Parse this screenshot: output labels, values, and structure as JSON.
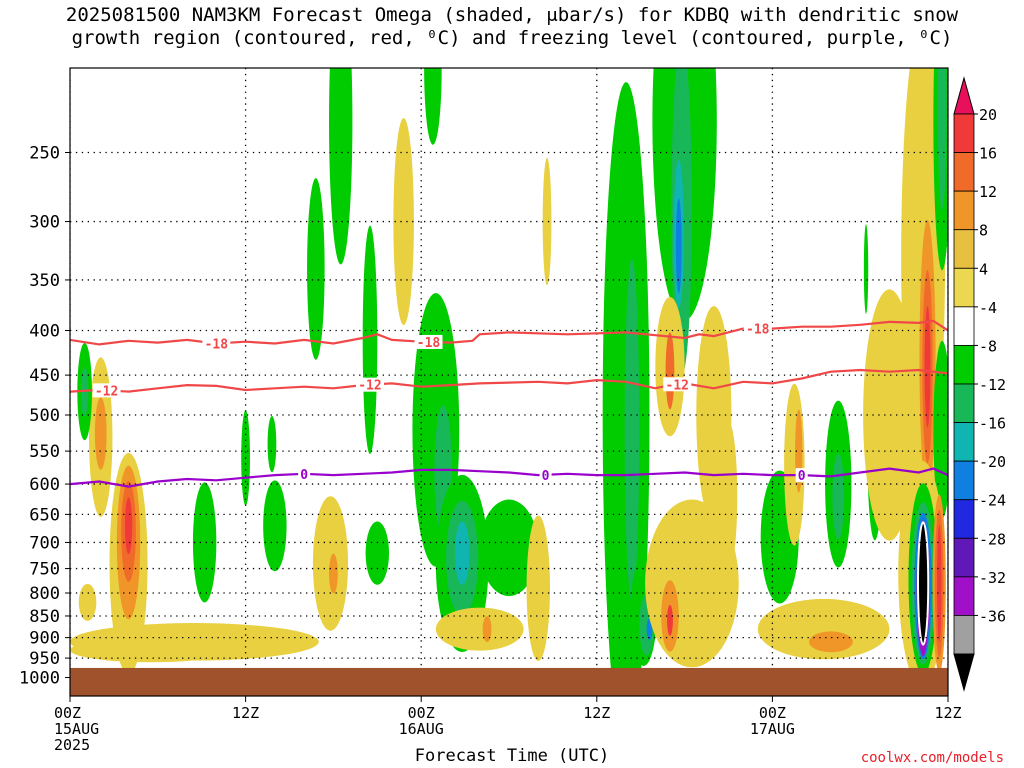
{
  "title": {
    "line1": "2025081500 NAM3KM Forecast Omega (shaded, μbar/s) for KDBQ with dendritic snow",
    "line2": "growth region (contoured, red, ⁰C) and freezing level (contoured, purple, ⁰C)"
  },
  "credit": "coolwx.com/models",
  "chart_data": {
    "type": "heatmap",
    "title": "2025081500 NAM3KM Forecast Omega (shaded, μbar/s) for KDBQ with dendritic snow growth region (contoured, red, ⁰C) and freezing level (contoured, purple, ⁰C)",
    "xlabel": "Forecast Time (UTC)",
    "ylabel": "",
    "xlim": [
      0,
      60
    ],
    "ylim": [
      1050,
      200
    ],
    "x_ticks": [
      {
        "value": 0,
        "label": "00Z",
        "sub": "15AUG",
        "sub2": "2025"
      },
      {
        "value": 12,
        "label": "12Z",
        "sub": "",
        "sub2": ""
      },
      {
        "value": 24,
        "label": "00Z",
        "sub": "16AUG",
        "sub2": ""
      },
      {
        "value": 36,
        "label": "12Z",
        "sub": "",
        "sub2": ""
      },
      {
        "value": 48,
        "label": "00Z",
        "sub": "17AUG",
        "sub2": ""
      },
      {
        "value": 60,
        "label": "12Z",
        "sub": "",
        "sub2": ""
      }
    ],
    "y_ticks": [
      250,
      300,
      350,
      400,
      450,
      500,
      550,
      600,
      650,
      700,
      750,
      800,
      850,
      900,
      950,
      1000
    ],
    "grid": true,
    "colorbar": {
      "labels": [
        "20",
        "16",
        "12",
        "8",
        "4",
        "-4",
        "-8",
        "-12",
        "-16",
        "-20",
        "-24",
        "-28",
        "-32",
        "-36"
      ],
      "colors": [
        "#e8105a",
        "#f03a3a",
        "#f06a2a",
        "#f09628",
        "#e8c040",
        "#ecd850",
        "#ffffff",
        "#00cc00",
        "#18b858",
        "#10b4b0",
        "#1080e0",
        "#2028e0",
        "#6018b8",
        "#a010c8",
        "#a0a0a0",
        "#000000"
      ]
    },
    "ground_color": "#a0522d",
    "contours": [
      {
        "name": "-18",
        "color": "#f04848",
        "label_x": [
          10,
          24.5,
          47
        ],
        "points": [
          [
            0,
            410
          ],
          [
            2,
            415
          ],
          [
            4,
            411
          ],
          [
            6,
            413
          ],
          [
            8,
            410
          ],
          [
            10,
            414
          ],
          [
            12,
            412
          ],
          [
            14,
            414
          ],
          [
            16,
            410
          ],
          [
            18,
            414
          ],
          [
            20,
            408
          ],
          [
            21,
            404
          ],
          [
            22,
            410
          ],
          [
            24,
            412
          ],
          [
            26,
            413
          ],
          [
            27.5,
            411
          ],
          [
            28,
            404
          ],
          [
            30,
            402
          ],
          [
            34,
            404
          ],
          [
            38,
            402
          ],
          [
            40,
            405
          ],
          [
            42,
            408
          ],
          [
            43,
            404
          ],
          [
            44,
            406
          ],
          [
            46,
            398
          ],
          [
            48,
            398
          ],
          [
            50,
            396
          ],
          [
            52,
            396
          ],
          [
            54,
            394
          ],
          [
            56,
            391
          ],
          [
            58,
            392
          ],
          [
            59,
            390
          ],
          [
            60,
            400
          ]
        ]
      },
      {
        "name": "-12",
        "color": "#f04848",
        "label_x": [
          2.5,
          20.5,
          41.5
        ],
        "points": [
          [
            0,
            470
          ],
          [
            2,
            468
          ],
          [
            4,
            470
          ],
          [
            6,
            466
          ],
          [
            8,
            462
          ],
          [
            10,
            463
          ],
          [
            12,
            468
          ],
          [
            14,
            466
          ],
          [
            16,
            464
          ],
          [
            18,
            466
          ],
          [
            20,
            462
          ],
          [
            22,
            460
          ],
          [
            24,
            464
          ],
          [
            26,
            462
          ],
          [
            28,
            460
          ],
          [
            32,
            458
          ],
          [
            34,
            460
          ],
          [
            36,
            456
          ],
          [
            38,
            458
          ],
          [
            40,
            466
          ],
          [
            41,
            462
          ],
          [
            42,
            460
          ],
          [
            44,
            466
          ],
          [
            46,
            458
          ],
          [
            48,
            460
          ],
          [
            50,
            454
          ],
          [
            52,
            446
          ],
          [
            54,
            444
          ],
          [
            56,
            446
          ],
          [
            58,
            444
          ],
          [
            60,
            448
          ]
        ]
      },
      {
        "name": "0",
        "color": "#9900cc",
        "label_x": [
          16,
          32.5,
          50
        ],
        "points": [
          [
            0,
            600
          ],
          [
            2,
            596
          ],
          [
            4,
            604
          ],
          [
            6,
            596
          ],
          [
            8,
            592
          ],
          [
            10,
            594
          ],
          [
            12,
            590
          ],
          [
            14,
            586
          ],
          [
            16,
            584
          ],
          [
            18,
            586
          ],
          [
            20,
            584
          ],
          [
            22,
            582
          ],
          [
            24,
            578
          ],
          [
            26,
            578
          ],
          [
            28,
            580
          ],
          [
            30,
            582
          ],
          [
            32,
            586
          ],
          [
            34,
            584
          ],
          [
            36,
            586
          ],
          [
            38,
            586
          ],
          [
            40,
            584
          ],
          [
            42,
            582
          ],
          [
            44,
            586
          ],
          [
            46,
            584
          ],
          [
            48,
            586
          ],
          [
            50,
            586
          ],
          [
            52,
            588
          ],
          [
            54,
            582
          ],
          [
            56,
            576
          ],
          [
            58,
            582
          ],
          [
            59,
            576
          ],
          [
            60,
            586
          ]
        ]
      }
    ],
    "shaded": [
      {
        "v": 4,
        "x": 2.1,
        "p": 530,
        "rx": 0.8,
        "rp": 110
      },
      {
        "v": 8,
        "x": 2.1,
        "p": 525,
        "rx": 0.4,
        "rp": 50
      },
      {
        "v": -4,
        "x": 1.0,
        "p": 470,
        "rx": 0.5,
        "rp": 60
      },
      {
        "v": -8,
        "x": 1.0,
        "p": 470,
        "rx": 0.25,
        "rp": 30
      },
      {
        "v": 4,
        "x": 4.0,
        "p": 740,
        "rx": 1.3,
        "rp": 210
      },
      {
        "v": 8,
        "x": 4.0,
        "p": 700,
        "rx": 0.8,
        "rp": 140
      },
      {
        "v": 12,
        "x": 4.0,
        "p": 680,
        "rx": 0.5,
        "rp": 90
      },
      {
        "v": 16,
        "x": 4.0,
        "p": 670,
        "rx": 0.25,
        "rp": 50
      },
      {
        "v": 4,
        "x": 1.2,
        "p": 820,
        "rx": 0.6,
        "rp": 40
      },
      {
        "v": 4,
        "x": 8.5,
        "p": 910,
        "rx": 8.5,
        "rp": 45
      },
      {
        "v": 4,
        "x": 5.5,
        "p": 930,
        "rx": 5.5,
        "rp": 30
      },
      {
        "v": -4,
        "x": 9.2,
        "p": 700,
        "rx": 0.8,
        "rp": 110
      },
      {
        "v": -4,
        "x": 12.0,
        "p": 560,
        "rx": 0.3,
        "rp": 70
      },
      {
        "v": -4,
        "x": 14.0,
        "p": 670,
        "rx": 0.8,
        "rp": 80
      },
      {
        "v": -4,
        "x": 13.8,
        "p": 540,
        "rx": 0.3,
        "rp": 40
      },
      {
        "v": 4,
        "x": 17.8,
        "p": 740,
        "rx": 1.2,
        "rp": 130
      },
      {
        "v": 8,
        "x": 18.0,
        "p": 760,
        "rx": 0.3,
        "rp": 40
      },
      {
        "v": -4,
        "x": 18.5,
        "p": 230,
        "rx": 0.8,
        "rp": 90
      },
      {
        "v": -4,
        "x": 16.8,
        "p": 340,
        "rx": 0.6,
        "rp": 80
      },
      {
        "v": 4,
        "x": 22.8,
        "p": 300,
        "rx": 0.7,
        "rp": 80
      },
      {
        "v": -4,
        "x": 20.5,
        "p": 410,
        "rx": 0.5,
        "rp": 120
      },
      {
        "v": -4,
        "x": 21.0,
        "p": 720,
        "rx": 0.8,
        "rp": 60
      },
      {
        "v": -4,
        "x": 25.0,
        "p": 520,
        "rx": 1.6,
        "rp": 180
      },
      {
        "v": -8,
        "x": 25.5,
        "p": 580,
        "rx": 0.6,
        "rp": 100
      },
      {
        "v": -4,
        "x": 26.8,
        "p": 740,
        "rx": 1.8,
        "rp": 170
      },
      {
        "v": -8,
        "x": 26.8,
        "p": 730,
        "rx": 1.1,
        "rp": 110
      },
      {
        "v": -12,
        "x": 26.8,
        "p": 720,
        "rx": 0.5,
        "rp": 60
      },
      {
        "v": -4,
        "x": 30.0,
        "p": 710,
        "rx": 2.0,
        "rp": 90
      },
      {
        "v": 4,
        "x": 28.0,
        "p": 880,
        "rx": 3.0,
        "rp": 50
      },
      {
        "v": 8,
        "x": 28.5,
        "p": 880,
        "rx": 0.3,
        "rp": 30
      },
      {
        "v": -4,
        "x": 24.8,
        "p": 200,
        "rx": 0.6,
        "rp": 40
      },
      {
        "v": 4,
        "x": 32.0,
        "p": 790,
        "rx": 0.8,
        "rp": 150
      },
      {
        "v": 4,
        "x": 32.6,
        "p": 300,
        "rx": 0.3,
        "rp": 50
      },
      {
        "v": -4,
        "x": 38.0,
        "p": 500,
        "rx": 1.6,
        "rp": 370
      },
      {
        "v": -8,
        "x": 38.4,
        "p": 520,
        "rx": 0.5,
        "rp": 220
      },
      {
        "v": -4,
        "x": 42.0,
        "p": 230,
        "rx": 2.2,
        "rp": 200
      },
      {
        "v": -8,
        "x": 41.8,
        "p": 290,
        "rx": 0.7,
        "rp": 120
      },
      {
        "v": -12,
        "x": 41.6,
        "p": 310,
        "rx": 0.35,
        "rp": 60
      },
      {
        "v": -16,
        "x": 41.6,
        "p": 320,
        "rx": 0.2,
        "rp": 40
      },
      {
        "v": -4,
        "x": 39.2,
        "p": 840,
        "rx": 0.9,
        "rp": 120
      },
      {
        "v": -8,
        "x": 39.4,
        "p": 870,
        "rx": 0.5,
        "rp": 70
      },
      {
        "v": -16,
        "x": 39.6,
        "p": 880,
        "rx": 0.2,
        "rp": 25
      },
      {
        "v": 4,
        "x": 42.5,
        "p": 780,
        "rx": 3.2,
        "rp": 170
      },
      {
        "v": 8,
        "x": 41.0,
        "p": 850,
        "rx": 0.6,
        "rp": 80
      },
      {
        "v": 16,
        "x": 41.0,
        "p": 860,
        "rx": 0.2,
        "rp": 35
      },
      {
        "v": 4,
        "x": 41.0,
        "p": 440,
        "rx": 1.0,
        "rp": 80
      },
      {
        "v": 12,
        "x": 41.0,
        "p": 445,
        "rx": 0.3,
        "rp": 45
      },
      {
        "v": 4,
        "x": 44.0,
        "p": 500,
        "rx": 1.2,
        "rp": 140
      },
      {
        "v": 4,
        "x": 45.0,
        "p": 620,
        "rx": 0.6,
        "rp": 120
      },
      {
        "v": -4,
        "x": 48.5,
        "p": 690,
        "rx": 1.3,
        "rp": 120
      },
      {
        "v": 4,
        "x": 49.5,
        "p": 570,
        "rx": 0.7,
        "rp": 120
      },
      {
        "v": 8,
        "x": 49.8,
        "p": 550,
        "rx": 0.25,
        "rp": 60
      },
      {
        "v": -4,
        "x": 52.5,
        "p": 600,
        "rx": 0.9,
        "rp": 130
      },
      {
        "v": -8,
        "x": 52.5,
        "p": 620,
        "rx": 0.4,
        "rp": 70
      },
      {
        "v": 4,
        "x": 51.5,
        "p": 880,
        "rx": 4.5,
        "rp": 70
      },
      {
        "v": 8,
        "x": 52.0,
        "p": 910,
        "rx": 1.5,
        "rp": 25
      },
      {
        "v": -4,
        "x": 55.0,
        "p": 560,
        "rx": 0.5,
        "rp": 120
      },
      {
        "v": -4,
        "x": 54.4,
        "p": 340,
        "rx": 0.15,
        "rp": 40
      },
      {
        "v": 4,
        "x": 56.0,
        "p": 500,
        "rx": 1.8,
        "rp": 160
      },
      {
        "v": 4,
        "x": 58.3,
        "p": 330,
        "rx": 1.5,
        "rp": 200
      },
      {
        "v": 4,
        "x": 58.6,
        "p": 460,
        "rx": 0.9,
        "rp": 200
      },
      {
        "v": 8,
        "x": 58.6,
        "p": 430,
        "rx": 0.55,
        "rp": 150
      },
      {
        "v": 12,
        "x": 58.6,
        "p": 440,
        "rx": 0.35,
        "rp": 110
      },
      {
        "v": 16,
        "x": 58.6,
        "p": 440,
        "rx": 0.2,
        "rp": 70
      },
      {
        "v": -4,
        "x": 59.6,
        "p": 520,
        "rx": 0.6,
        "rp": 120
      },
      {
        "v": -4,
        "x": 59.6,
        "p": 230,
        "rx": 0.6,
        "rp": 100
      },
      {
        "v": -8,
        "x": 59.6,
        "p": 220,
        "rx": 0.3,
        "rp": 60
      },
      {
        "v": 4,
        "x": 58.2,
        "p": 760,
        "rx": 1.6,
        "rp": 220
      },
      {
        "v": -4,
        "x": 58.3,
        "p": 770,
        "rx": 1.0,
        "rp": 190
      },
      {
        "v": -8,
        "x": 58.3,
        "p": 780,
        "rx": 0.8,
        "rp": 165
      },
      {
        "v": -16,
        "x": 58.3,
        "p": 785,
        "rx": 0.6,
        "rp": 150
      },
      {
        "v": -28,
        "x": 58.3,
        "p": 790,
        "rx": 0.45,
        "rp": 140
      },
      {
        "v": -36,
        "x": 58.3,
        "p": 780,
        "rx": 0.35,
        "rp": 125
      },
      {
        "v": 8,
        "x": 59.4,
        "p": 780,
        "rx": 0.45,
        "rp": 180
      },
      {
        "v": 12,
        "x": 59.4,
        "p": 780,
        "rx": 0.3,
        "rp": 150
      },
      {
        "v": 16,
        "x": 59.4,
        "p": 780,
        "rx": 0.15,
        "rp": 120
      }
    ]
  }
}
